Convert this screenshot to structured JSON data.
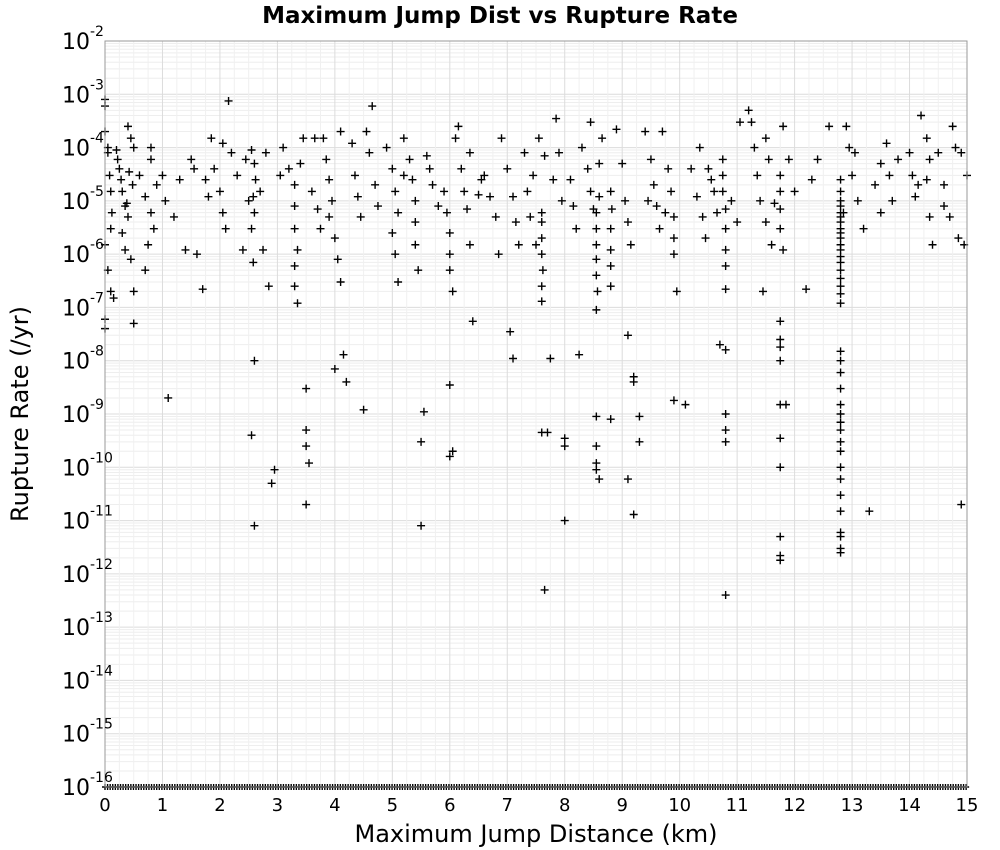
{
  "chart_data": {
    "type": "scatter",
    "title": "Maximum Jump Dist vs Rupture Rate",
    "xlabel": "Maximum Jump Distance (km)",
    "ylabel": "Rupture Rate (/yr)",
    "xlim": [
      0,
      15
    ],
    "ylim": [
      1e-16,
      0.01
    ],
    "y_scale": "log",
    "grid": true,
    "marker": "plus",
    "marker_color": "#000000",
    "x_ticks": [
      "0",
      "1",
      "2",
      "3",
      "4",
      "5",
      "6",
      "7",
      "8",
      "9",
      "10",
      "11",
      "12",
      "13",
      "14",
      "15"
    ],
    "y_ticks": [
      {
        "base": "10",
        "exp": "-16"
      },
      {
        "base": "10",
        "exp": "-15"
      },
      {
        "base": "10",
        "exp": "-14"
      },
      {
        "base": "10",
        "exp": "-13"
      },
      {
        "base": "10",
        "exp": "-12"
      },
      {
        "base": "10",
        "exp": "-11"
      },
      {
        "base": "10",
        "exp": "-10"
      },
      {
        "base": "10",
        "exp": "-9"
      },
      {
        "base": "10",
        "exp": "-8"
      },
      {
        "base": "10",
        "exp": "-7"
      },
      {
        "base": "10",
        "exp": "-6"
      },
      {
        "base": "10",
        "exp": "-5"
      },
      {
        "base": "10",
        "exp": "-4"
      },
      {
        "base": "10",
        "exp": "-3"
      },
      {
        "base": "10",
        "exp": "-2"
      }
    ],
    "points": [
      [
        0.0,
        0.0008
      ],
      [
        0.0,
        0.0006
      ],
      [
        0.0,
        0.0002
      ],
      [
        0.05,
        0.0001
      ],
      [
        0.05,
        8e-05
      ],
      [
        0.08,
        3e-05
      ],
      [
        0.1,
        1.5e-05
      ],
      [
        0.12,
        6e-06
      ],
      [
        0.1,
        3e-06
      ],
      [
        0.0,
        1.5e-06
      ],
      [
        0.05,
        5e-07
      ],
      [
        0.1,
        2e-07
      ],
      [
        0.15,
        1.5e-07
      ],
      [
        0.0,
        6e-08
      ],
      [
        0.0,
        4e-08
      ],
      [
        0.2,
        9e-05
      ],
      [
        0.22,
        6e-05
      ],
      [
        0.25,
        4e-05
      ],
      [
        0.28,
        2.5e-05
      ],
      [
        0.3,
        1.5e-05
      ],
      [
        0.35,
        8e-06
      ],
      [
        0.4,
        5e-06
      ],
      [
        0.3,
        2.5e-06
      ],
      [
        0.35,
        1.2e-06
      ],
      [
        0.45,
        8e-07
      ],
      [
        0.5,
        2e-07
      ],
      [
        0.5,
        5e-08
      ],
      [
        0.4,
        0.00025
      ],
      [
        0.45,
        0.00015
      ],
      [
        0.5,
        0.0001
      ],
      [
        0.42,
        3.5e-05
      ],
      [
        0.48,
        2e-05
      ],
      [
        0.38,
        9e-06
      ],
      [
        0.8,
        6e-05
      ],
      [
        0.9,
        2e-05
      ],
      [
        0.7,
        1.2e-05
      ],
      [
        0.8,
        6e-06
      ],
      [
        0.85,
        3e-06
      ],
      [
        0.75,
        1.5e-06
      ],
      [
        0.7,
        5e-07
      ],
      [
        0.8,
        0.0001
      ],
      [
        1.0,
        3e-05
      ],
      [
        1.05,
        1e-05
      ],
      [
        1.1,
        2e-09
      ],
      [
        1.2,
        5e-06
      ],
      [
        1.3,
        2.5e-05
      ],
      [
        1.4,
        1.2e-06
      ],
      [
        1.5,
        6e-05
      ],
      [
        1.6,
        1e-06
      ],
      [
        1.75,
        2.5e-05
      ],
      [
        1.8,
        1.2e-05
      ],
      [
        1.7,
        2.2e-07
      ],
      [
        1.85,
        0.00015
      ],
      [
        1.9,
        4e-05
      ],
      [
        2.0,
        1.5e-05
      ],
      [
        2.05,
        6e-06
      ],
      [
        2.1,
        3e-06
      ],
      [
        2.15,
        0.00075
      ],
      [
        2.2,
        8e-05
      ],
      [
        2.3,
        3e-05
      ],
      [
        2.4,
        1.2e-06
      ],
      [
        2.5,
        1e-05
      ],
      [
        2.55,
        9e-05
      ],
      [
        2.6,
        5e-05
      ],
      [
        2.62,
        2.5e-05
      ],
      [
        2.58,
        1.2e-05
      ],
      [
        2.6,
        6e-06
      ],
      [
        2.55,
        3e-06
      ],
      [
        2.58,
        7e-07
      ],
      [
        2.6,
        1e-08
      ],
      [
        2.55,
        4e-10
      ],
      [
        2.6,
        8e-12
      ],
      [
        2.7,
        1.5e-05
      ],
      [
        2.75,
        1.2e-06
      ],
      [
        2.8,
        8e-05
      ],
      [
        2.85,
        2.5e-07
      ],
      [
        2.9,
        5e-11
      ],
      [
        2.95,
        9e-11
      ],
      [
        3.1,
        0.0001
      ],
      [
        3.2,
        4e-05
      ],
      [
        3.3,
        2e-05
      ],
      [
        3.3,
        8e-06
      ],
      [
        3.3,
        3e-06
      ],
      [
        3.35,
        1.2e-06
      ],
      [
        3.3,
        6e-07
      ],
      [
        3.3,
        2.5e-07
      ],
      [
        3.35,
        1.2e-07
      ],
      [
        3.5,
        3e-09
      ],
      [
        3.5,
        5e-10
      ],
      [
        3.5,
        2.5e-10
      ],
      [
        3.55,
        1.2e-10
      ],
      [
        3.5,
        2e-11
      ],
      [
        3.45,
        0.00015
      ],
      [
        3.4,
        5e-05
      ],
      [
        3.6,
        1.5e-05
      ],
      [
        3.7,
        7e-06
      ],
      [
        3.75,
        3e-06
      ],
      [
        3.8,
        0.00015
      ],
      [
        3.85,
        6e-05
      ],
      [
        3.9,
        2.5e-05
      ],
      [
        3.95,
        1e-05
      ],
      [
        3.9,
        5e-06
      ],
      [
        4.0,
        2e-06
      ],
      [
        4.05,
        8e-07
      ],
      [
        4.1,
        3e-07
      ],
      [
        4.0,
        7e-09
      ],
      [
        4.15,
        1.3e-08
      ],
      [
        4.2,
        4e-09
      ],
      [
        4.3,
        0.00012
      ],
      [
        4.35,
        3e-05
      ],
      [
        4.4,
        1.2e-05
      ],
      [
        4.45,
        5e-06
      ],
      [
        4.5,
        1.2e-09
      ],
      [
        4.55,
        0.0002
      ],
      [
        4.65,
        0.0006
      ],
      [
        4.7,
        2e-05
      ],
      [
        4.75,
        8e-06
      ],
      [
        4.9,
        0.0001
      ],
      [
        5.0,
        4e-05
      ],
      [
        5.05,
        1.5e-05
      ],
      [
        5.1,
        6e-06
      ],
      [
        5.0,
        2.5e-06
      ],
      [
        5.05,
        1e-06
      ],
      [
        5.1,
        3e-07
      ],
      [
        5.2,
        0.00015
      ],
      [
        5.3,
        6e-05
      ],
      [
        5.35,
        2.5e-05
      ],
      [
        5.4,
        1e-05
      ],
      [
        5.4,
        4e-06
      ],
      [
        5.4,
        1.5e-06
      ],
      [
        5.45,
        5e-07
      ],
      [
        5.5,
        3e-10
      ],
      [
        5.55,
        1.1e-09
      ],
      [
        5.5,
        8e-12
      ],
      [
        5.6,
        7e-05
      ],
      [
        5.7,
        2e-05
      ],
      [
        5.8,
        8e-06
      ],
      [
        5.9,
        1.5e-05
      ],
      [
        5.95,
        6e-06
      ],
      [
        6.0,
        2.5e-06
      ],
      [
        6.0,
        1e-06
      ],
      [
        6.0,
        5e-07
      ],
      [
        6.05,
        2e-07
      ],
      [
        6.0,
        3.5e-09
      ],
      [
        6.05,
        2e-10
      ],
      [
        6.0,
        1.6e-10
      ],
      [
        6.1,
        0.00015
      ],
      [
        6.15,
        0.00025
      ],
      [
        6.2,
        4e-05
      ],
      [
        6.25,
        1.5e-05
      ],
      [
        6.3,
        7e-06
      ],
      [
        6.35,
        1.5e-06
      ],
      [
        6.4,
        5.5e-08
      ],
      [
        6.5,
        1.3e-05
      ],
      [
        6.6,
        3e-05
      ],
      [
        6.7,
        1.2e-05
      ],
      [
        6.8,
        5e-06
      ],
      [
        6.85,
        1e-06
      ],
      [
        6.9,
        0.00015
      ],
      [
        7.0,
        4e-05
      ],
      [
        7.1,
        1.2e-05
      ],
      [
        7.05,
        3.5e-08
      ],
      [
        7.1,
        1.1e-08
      ],
      [
        7.15,
        4e-06
      ],
      [
        7.2,
        1.5e-06
      ],
      [
        7.3,
        8e-05
      ],
      [
        7.35,
        1.5e-05
      ],
      [
        7.4,
        5e-06
      ],
      [
        7.5,
        1.5e-06
      ],
      [
        7.55,
        0.00015
      ],
      [
        7.6,
        4e-06
      ],
      [
        7.6,
        2e-06
      ],
      [
        7.6,
        1e-06
      ],
      [
        7.62,
        5e-07
      ],
      [
        7.6,
        2.5e-07
      ],
      [
        7.6,
        1.3e-07
      ],
      [
        7.6,
        6e-06
      ],
      [
        7.6,
        4.5e-10
      ],
      [
        7.7,
        4.5e-10
      ],
      [
        7.75,
        1.1e-08
      ],
      [
        7.8,
        2.5e-05
      ],
      [
        7.85,
        0.00035
      ],
      [
        7.9,
        8e-05
      ],
      [
        7.95,
        1e-05
      ],
      [
        8.0,
        3.5e-10
      ],
      [
        8.0,
        2.5e-10
      ],
      [
        8.0,
        1e-11
      ],
      [
        7.65,
        5e-13
      ],
      [
        8.1,
        2.5e-05
      ],
      [
        8.15,
        8e-06
      ],
      [
        8.2,
        3e-06
      ],
      [
        8.25,
        1.3e-08
      ],
      [
        8.3,
        0.0001
      ],
      [
        8.4,
        4e-05
      ],
      [
        8.45,
        1.5e-05
      ],
      [
        8.5,
        7e-06
      ],
      [
        8.55,
        6e-06
      ],
      [
        8.55,
        3e-06
      ],
      [
        8.55,
        1.5e-06
      ],
      [
        8.55,
        8e-07
      ],
      [
        8.55,
        4e-07
      ],
      [
        8.57,
        2e-07
      ],
      [
        8.55,
        9e-08
      ],
      [
        8.6,
        5e-05
      ],
      [
        8.6,
        1.2e-05
      ],
      [
        8.55,
        9e-10
      ],
      [
        8.55,
        2.5e-10
      ],
      [
        8.55,
        1.2e-10
      ],
      [
        8.55,
        9e-11
      ],
      [
        8.6,
        6e-11
      ],
      [
        8.8,
        8e-10
      ],
      [
        8.8,
        1.5e-05
      ],
      [
        8.82,
        7e-06
      ],
      [
        8.8,
        3e-06
      ],
      [
        8.8,
        1.2e-06
      ],
      [
        8.8,
        6e-07
      ],
      [
        8.8,
        2.5e-07
      ],
      [
        8.9,
        0.00022
      ],
      [
        9.0,
        5e-05
      ],
      [
        9.05,
        1e-05
      ],
      [
        9.1,
        4e-06
      ],
      [
        9.15,
        1.5e-06
      ],
      [
        9.1,
        3e-08
      ],
      [
        9.2,
        5e-09
      ],
      [
        9.2,
        4e-09
      ],
      [
        9.1,
        6e-11
      ],
      [
        9.2,
        1.3e-11
      ],
      [
        9.3,
        9e-10
      ],
      [
        9.3,
        3e-10
      ],
      [
        9.4,
        0.0002
      ],
      [
        9.5,
        6e-05
      ],
      [
        9.55,
        2e-05
      ],
      [
        9.6,
        8e-06
      ],
      [
        9.65,
        3e-06
      ],
      [
        9.7,
        0.0002
      ],
      [
        9.8,
        4e-05
      ],
      [
        9.85,
        1.5e-05
      ],
      [
        9.9,
        5e-06
      ],
      [
        9.9,
        2e-06
      ],
      [
        9.9,
        1e-06
      ],
      [
        9.95,
        2e-07
      ],
      [
        9.9,
        1.8e-09
      ],
      [
        10.1,
        1.5e-09
      ],
      [
        10.2,
        4e-05
      ],
      [
        10.3,
        1.2e-05
      ],
      [
        10.4,
        5e-06
      ],
      [
        10.45,
        2e-06
      ],
      [
        10.5,
        4e-05
      ],
      [
        10.6,
        1.5e-05
      ],
      [
        10.65,
        6e-06
      ],
      [
        10.7,
        2e-08
      ],
      [
        10.75,
        6e-05
      ],
      [
        10.75,
        3e-05
      ],
      [
        10.75,
        1.5e-05
      ],
      [
        10.8,
        7e-06
      ],
      [
        10.8,
        3e-06
      ],
      [
        10.8,
        1.2e-06
      ],
      [
        10.8,
        6e-07
      ],
      [
        10.8,
        2.2e-07
      ],
      [
        10.8,
        1.6e-08
      ],
      [
        10.8,
        1e-09
      ],
      [
        10.8,
        5e-10
      ],
      [
        10.8,
        3e-10
      ],
      [
        10.8,
        4e-13
      ],
      [
        10.9,
        1e-05
      ],
      [
        11.0,
        4e-06
      ],
      [
        11.05,
        0.0003
      ],
      [
        11.2,
        0.0005
      ],
      [
        11.25,
        0.0003
      ],
      [
        11.3,
        0.0001
      ],
      [
        11.35,
        3e-05
      ],
      [
        11.4,
        1e-05
      ],
      [
        11.45,
        2e-07
      ],
      [
        11.5,
        4e-06
      ],
      [
        11.6,
        1.5e-06
      ],
      [
        11.65,
        9e-06
      ],
      [
        11.75,
        3e-05
      ],
      [
        11.75,
        1.5e-05
      ],
      [
        11.75,
        7e-06
      ],
      [
        11.75,
        3e-06
      ],
      [
        11.8,
        1.2e-06
      ],
      [
        11.75,
        5.5e-08
      ],
      [
        11.75,
        2.5e-08
      ],
      [
        11.75,
        1.8e-08
      ],
      [
        11.75,
        1e-08
      ],
      [
        11.75,
        1.5e-09
      ],
      [
        11.75,
        3.5e-10
      ],
      [
        11.75,
        1e-10
      ],
      [
        11.75,
        5e-12
      ],
      [
        11.75,
        2.2e-12
      ],
      [
        11.75,
        1.8e-12
      ],
      [
        11.85,
        1.5e-09
      ],
      [
        11.8,
        0.00025
      ],
      [
        11.9,
        6e-05
      ],
      [
        12.0,
        1.5e-05
      ],
      [
        12.2,
        2.2e-07
      ],
      [
        12.3,
        2.5e-05
      ],
      [
        12.6,
        0.00025
      ],
      [
        12.8,
        2.5e-05
      ],
      [
        12.8,
        1.5e-05
      ],
      [
        12.8,
        1e-05
      ],
      [
        12.8,
        8e-06
      ],
      [
        12.8,
        6e-06
      ],
      [
        12.8,
        5e-06
      ],
      [
        12.8,
        4e-06
      ],
      [
        12.8,
        3e-06
      ],
      [
        12.8,
        2.5e-06
      ],
      [
        12.8,
        2e-06
      ],
      [
        12.8,
        1.5e-06
      ],
      [
        12.8,
        1.2e-06
      ],
      [
        12.8,
        9e-07
      ],
      [
        12.8,
        7e-07
      ],
      [
        12.8,
        5e-07
      ],
      [
        12.8,
        3.5e-07
      ],
      [
        12.8,
        2.5e-07
      ],
      [
        12.8,
        1.8e-07
      ],
      [
        12.8,
        1.2e-07
      ],
      [
        12.8,
        1.5e-08
      ],
      [
        12.8,
        1e-08
      ],
      [
        12.8,
        6e-09
      ],
      [
        12.8,
        3e-09
      ],
      [
        12.8,
        1.5e-09
      ],
      [
        12.8,
        1e-09
      ],
      [
        12.8,
        7e-10
      ],
      [
        12.8,
        5e-10
      ],
      [
        12.8,
        3e-10
      ],
      [
        12.8,
        2e-10
      ],
      [
        12.8,
        1e-10
      ],
      [
        12.8,
        6e-11
      ],
      [
        12.8,
        3e-11
      ],
      [
        12.8,
        1.5e-11
      ],
      [
        12.8,
        6e-12
      ],
      [
        12.8,
        5e-12
      ],
      [
        12.8,
        3e-12
      ],
      [
        12.8,
        2.5e-12
      ],
      [
        12.85,
        6e-06
      ],
      [
        12.9,
        0.00025
      ],
      [
        12.95,
        0.0001
      ],
      [
        13.0,
        3e-05
      ],
      [
        13.1,
        1e-05
      ],
      [
        13.2,
        3e-06
      ],
      [
        13.3,
        1.5e-11
      ],
      [
        13.4,
        2e-05
      ],
      [
        13.5,
        6e-06
      ],
      [
        13.6,
        0.00012
      ],
      [
        13.65,
        3e-05
      ],
      [
        13.7,
        1e-05
      ],
      [
        13.8,
        6e-05
      ],
      [
        14.0,
        8e-05
      ],
      [
        14.05,
        3e-05
      ],
      [
        14.1,
        1.2e-05
      ],
      [
        14.2,
        0.0004
      ],
      [
        14.3,
        0.00015
      ],
      [
        14.35,
        6e-05
      ],
      [
        14.3,
        2.5e-05
      ],
      [
        14.35,
        5e-06
      ],
      [
        14.4,
        1.5e-06
      ],
      [
        14.5,
        8e-05
      ],
      [
        14.6,
        2e-05
      ],
      [
        14.7,
        5e-06
      ],
      [
        14.75,
        0.00025
      ],
      [
        14.8,
        0.0001
      ],
      [
        14.85,
        2e-06
      ],
      [
        14.9,
        2e-11
      ],
      [
        14.95,
        1.5e-06
      ],
      [
        15.0,
        3e-05
      ],
      [
        14.9,
        8e-05
      ],
      [
        2.05,
        0.00012
      ],
      [
        3.05,
        3e-05
      ],
      [
        4.1,
        0.0002
      ],
      [
        5.2,
        3e-05
      ],
      [
        6.35,
        8e-05
      ],
      [
        7.45,
        3e-05
      ],
      [
        8.45,
        0.0003
      ],
      [
        9.45,
        1e-05
      ],
      [
        10.35,
        0.0001
      ],
      [
        11.5,
        0.00015
      ],
      [
        12.4,
        6e-05
      ],
      [
        13.5,
        5e-05
      ],
      [
        14.6,
        8e-06
      ],
      [
        0.6,
        3e-05
      ],
      [
        1.55,
        4e-05
      ],
      [
        2.45,
        6e-05
      ],
      [
        3.65,
        0.00015
      ],
      [
        4.6,
        8e-05
      ],
      [
        5.65,
        4e-05
      ],
      [
        6.55,
        2.5e-05
      ],
      [
        7.65,
        7e-05
      ],
      [
        8.65,
        0.00015
      ],
      [
        9.75,
        6e-06
      ],
      [
        10.55,
        2.5e-05
      ],
      [
        11.55,
        6e-05
      ],
      [
        13.05,
        8e-05
      ],
      [
        14.15,
        2e-05
      ]
    ]
  }
}
